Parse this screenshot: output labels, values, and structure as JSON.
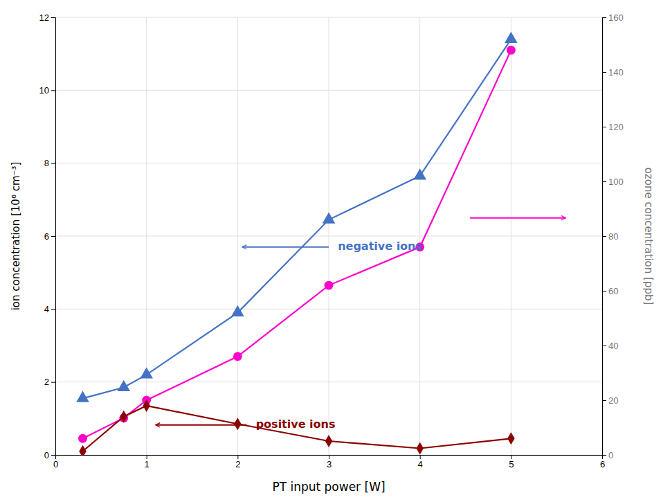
{
  "chart_data": {
    "type": "line",
    "x": [
      0.3,
      0.75,
      1.0,
      2.0,
      3.0,
      4.0,
      5.0
    ],
    "series": [
      {
        "color": "#4472C4",
        "marker": "triangle",
        "axis": "y",
        "values": [
          1.55,
          1.85,
          2.2,
          3.9,
          6.45,
          7.65,
          11.4
        ]
      },
      {
        "color": "#FF00CC",
        "marker": "circle",
        "axis": "y2",
        "values": [
          6.0,
          13.5,
          20.0,
          36.0,
          62.0,
          76.0,
          148.0
        ]
      },
      {
        "color": "#8B0000",
        "marker": "diamond",
        "axis": "y",
        "values": [
          0.1,
          1.05,
          1.35,
          0.85,
          0.38,
          0.18,
          0.45
        ]
      }
    ],
    "xlabel": "PT input power [W]",
    "ylabel": "ion concentration [10⁶ cm⁻³]",
    "y2label": "ozone concentration [ppb]",
    "xlim": [
      0,
      6
    ],
    "xticks": [
      0,
      1,
      2,
      3,
      4,
      5,
      6
    ],
    "ylim": [
      0,
      12
    ],
    "yticks": [
      0,
      2,
      4,
      6,
      8,
      10,
      12
    ],
    "y2lim": [
      0,
      160
    ],
    "y2ticks": [
      0,
      20,
      40,
      60,
      80,
      100,
      120,
      140,
      160
    ],
    "grid": true,
    "annotations": [
      {
        "text": "negative ions",
        "color": "#4472C4",
        "x": 3.1,
        "y": 5.7,
        "arrow_from": [
          3.0,
          5.7
        ],
        "arrow_to": [
          2.05,
          5.7
        ]
      },
      {
        "text": "positive ions",
        "color": "#8B0000",
        "x": 2.2,
        "y": 0.82,
        "arrow_from": [
          2.1,
          0.82
        ],
        "arrow_to": [
          1.1,
          0.82
        ]
      },
      {
        "color": "#FF00CC",
        "arrow_from": [
          4.55,
          6.5
        ],
        "arrow_to": [
          5.6,
          6.5
        ]
      }
    ]
  }
}
